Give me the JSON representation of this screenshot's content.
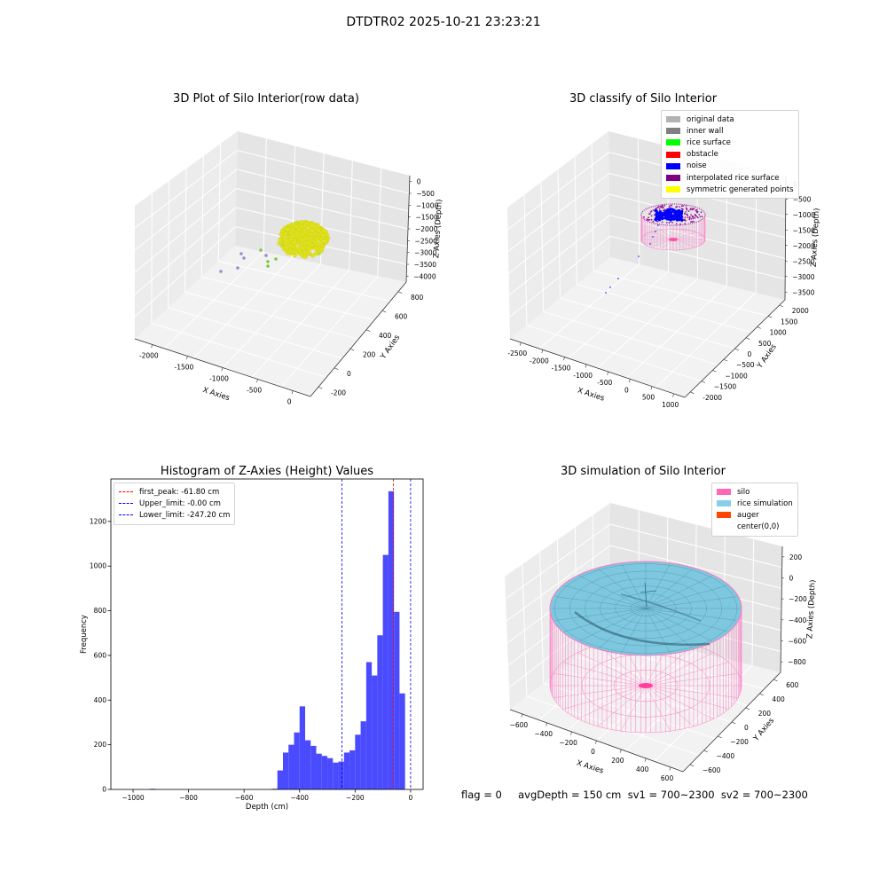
{
  "suptitle": "DTDTR02 2025-10-21 23:23:21",
  "footer": "flag = 0     avgDepth = 150 cm  sv1 = 700~2300  sv2 = 700~2300",
  "chart_data": [
    {
      "type": "scatter",
      "projection": "3d",
      "title": "3D Plot of Silo Interior(row data)",
      "xlabel": "X Axies",
      "ylabel": "Y Axies",
      "zlabel": "Z Axies (Depth)",
      "xticks": [
        "-2000",
        "-1500",
        "-1000",
        "-500",
        "0"
      ],
      "yticks": [
        "-200",
        "0",
        "200",
        "400",
        "600",
        "800"
      ],
      "zticks": [
        "0",
        "−500",
        "−1000",
        "−1500",
        "−2000",
        "−2500",
        "−3000",
        "−3500",
        "−4000"
      ],
      "colors": {
        "cluster": "#e0e21d",
        "outlier_purple": "#9a8fc2",
        "outlier_green": "#7ac943"
      }
    },
    {
      "type": "scatter",
      "projection": "3d",
      "title": "3D classify of Silo Interior",
      "xlabel": "X Axies",
      "ylabel": "Y Axies",
      "zlabel": "Z Axies (Depth)",
      "xticks": [
        "-2500",
        "-2000",
        "-1500",
        "-1000",
        "-500",
        "0",
        "500",
        "1000"
      ],
      "yticks": [
        "-2000",
        "−1500",
        "−1000",
        "−500",
        "0",
        "500",
        "1000",
        "1500",
        "2000"
      ],
      "zticks": [
        "0",
        "−500",
        "−1000",
        "−1500",
        "−2000",
        "−2500",
        "−3000",
        "−3500"
      ],
      "legend": [
        {
          "label": "original data",
          "color": "#b3b3b3"
        },
        {
          "label": "inner wall",
          "color": "#808080"
        },
        {
          "label": "rice surface",
          "color": "#00ff00"
        },
        {
          "label": "obstacle",
          "color": "#ff0000"
        },
        {
          "label": "noise",
          "color": "#0000ff"
        },
        {
          "label": "interpolated rice surface",
          "color": "#800080"
        },
        {
          "label": "symmetric generated points",
          "color": "#ffff00"
        }
      ],
      "legend_loc": "upper right"
    },
    {
      "type": "bar",
      "subtype": "histogram",
      "title": "Histogram of Z-Axies (Height) Values",
      "xlabel": "Depth (cm)",
      "ylabel": "Frequency",
      "xlim": [
        -1080,
        45
      ],
      "ylim": [
        0,
        1390
      ],
      "xticks": [
        -1000,
        -800,
        -600,
        -400,
        -200,
        0
      ],
      "yticks": [
        0,
        200,
        400,
        600,
        800,
        1000,
        1200
      ],
      "bin_width": 20,
      "bins": [
        {
          "x": -950,
          "value": 0
        },
        {
          "x": -930,
          "value": 3
        },
        {
          "x": -910,
          "value": 1
        },
        {
          "x": -490,
          "value": 3
        },
        {
          "x": -470,
          "value": 85
        },
        {
          "x": -450,
          "value": 165
        },
        {
          "x": -430,
          "value": 200
        },
        {
          "x": -410,
          "value": 255
        },
        {
          "x": -390,
          "value": 372
        },
        {
          "x": -370,
          "value": 220
        },
        {
          "x": -350,
          "value": 195
        },
        {
          "x": -330,
          "value": 160
        },
        {
          "x": -310,
          "value": 150
        },
        {
          "x": -290,
          "value": 140
        },
        {
          "x": -270,
          "value": 120
        },
        {
          "x": -250,
          "value": 125
        },
        {
          "x": -230,
          "value": 165
        },
        {
          "x": -210,
          "value": 175
        },
        {
          "x": -190,
          "value": 245
        },
        {
          "x": -170,
          "value": 305
        },
        {
          "x": -150,
          "value": 570
        },
        {
          "x": -130,
          "value": 510
        },
        {
          "x": -110,
          "value": 690
        },
        {
          "x": -90,
          "value": 1050
        },
        {
          "x": -70,
          "value": 1335
        },
        {
          "x": -50,
          "value": 795
        },
        {
          "x": -30,
          "value": 430
        },
        {
          "x": -10,
          "value": 0
        }
      ],
      "bar_color": "#4a4aff",
      "vlines": [
        {
          "x": -61.8,
          "color": "#ff0000",
          "label": "first_peak: -61.80 cm"
        },
        {
          "x": -0.0,
          "color": "#0000ff",
          "label": "Upper_limit: -0.00 cm"
        },
        {
          "x": -247.2,
          "color": "#0000ff",
          "label": "Lower_limit: -247.20 cm"
        }
      ],
      "legend_loc": "upper left"
    },
    {
      "type": "scatter",
      "projection": "3d",
      "title": "3D simulation of Silo Interior",
      "xlabel": "X Axies",
      "ylabel": "Y Axies",
      "zlabel": "Z Axies (Depth)",
      "xticks": [
        "−600",
        "−400",
        "−200",
        "0",
        "200",
        "400",
        "600"
      ],
      "yticks": [
        "−600",
        "−400",
        "−200",
        "0",
        "200",
        "400",
        "600"
      ],
      "zticks": [
        "200",
        "0",
        "−200",
        "−400",
        "−600",
        "−800"
      ],
      "legend": [
        {
          "label": "silo",
          "color": "#ff69b4"
        },
        {
          "label": "rice simulation",
          "color": "#87ceeb"
        },
        {
          "label": "auger",
          "color": "#ff4500"
        },
        {
          "label": "center(0,0)",
          "color": ""
        }
      ],
      "legend_loc": "upper right"
    }
  ]
}
